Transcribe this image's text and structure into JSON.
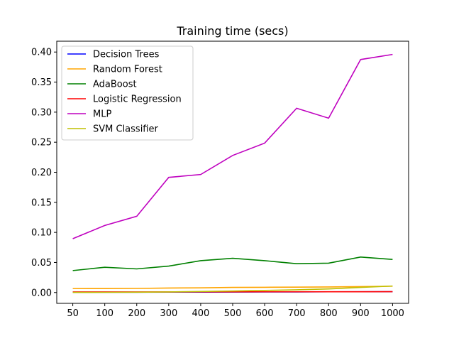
{
  "chart_data": {
    "type": "line",
    "title": "Training time (secs)",
    "xlabel": "",
    "ylabel": "",
    "categories": [
      "50",
      "100",
      "200",
      "300",
      "400",
      "500",
      "600",
      "700",
      "800",
      "900",
      "1000"
    ],
    "ylim": [
      -0.018,
      0.418
    ],
    "yticks": [
      0.0,
      0.05,
      0.1,
      0.15,
      0.2,
      0.25,
      0.3,
      0.35,
      0.4
    ],
    "ytick_labels": [
      "0.00",
      "0.05",
      "0.10",
      "0.15",
      "0.20",
      "0.25",
      "0.30",
      "0.35",
      "0.40"
    ],
    "grid": false,
    "legend_position": "top-left",
    "series": [
      {
        "name": "Decision Trees",
        "color": "#0000ff",
        "values": [
          0.0005,
          0.0005,
          0.0005,
          0.0006,
          0.0007,
          0.0008,
          0.0009,
          0.001,
          0.0012,
          0.0013,
          0.0014
        ]
      },
      {
        "name": "Random Forest",
        "color": "#ffa500",
        "values": [
          0.0065,
          0.0066,
          0.0068,
          0.0075,
          0.0078,
          0.0085,
          0.0087,
          0.009,
          0.0093,
          0.0098,
          0.0105
        ]
      },
      {
        "name": "AdaBoost",
        "color": "#008000",
        "values": [
          0.0365,
          0.042,
          0.0393,
          0.044,
          0.053,
          0.057,
          0.053,
          0.048,
          0.0488,
          0.059,
          0.055
        ]
      },
      {
        "name": "Logistic Regression",
        "color": "#ff0000",
        "values": [
          0.001,
          0.001,
          0.001,
          0.001,
          0.0011,
          0.0011,
          0.0012,
          0.0012,
          0.0013,
          0.0013,
          0.0014
        ]
      },
      {
        "name": "MLP",
        "color": "#bf00bf",
        "values": [
          0.0895,
          0.1115,
          0.1268,
          0.1915,
          0.1963,
          0.228,
          0.2485,
          0.3065,
          0.29,
          0.3875,
          0.396
        ]
      },
      {
        "name": "SVM Classifier",
        "color": "#bfbf00",
        "values": [
          0.0002,
          0.0003,
          0.0005,
          0.001,
          0.0017,
          0.0025,
          0.0035,
          0.0045,
          0.006,
          0.0085,
          0.0108
        ]
      }
    ]
  }
}
